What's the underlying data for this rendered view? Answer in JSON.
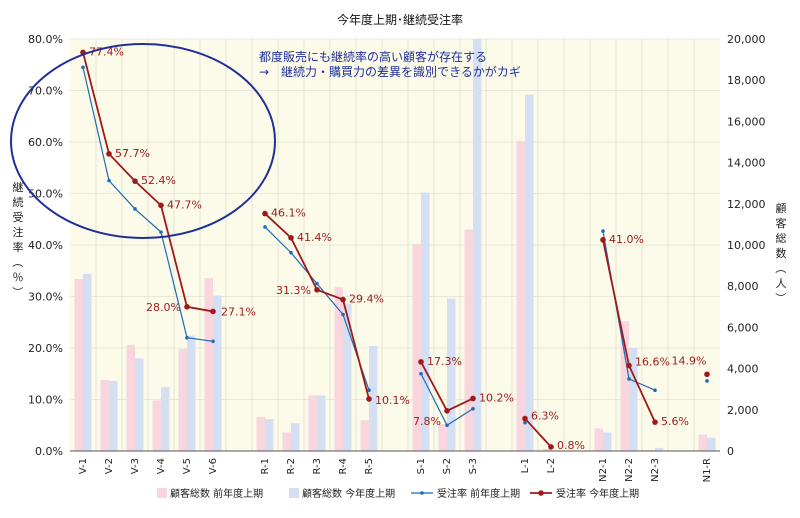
{
  "chart_data": {
    "type": "bar",
    "title": "今年度上期･継続受注率",
    "ylabel": "継続受注率（％）",
    "y2label": "顧客総数（人）",
    "ylim": [
      0,
      80
    ],
    "y2lim": [
      0,
      20000
    ],
    "y_ticks": [
      "0.0%",
      "10.0%",
      "20.0%",
      "30.0%",
      "40.0%",
      "50.0%",
      "60.0%",
      "70.0%",
      "80.0%"
    ],
    "y2_ticks": [
      "0",
      "2,000",
      "4,000",
      "6,000",
      "8,000",
      "10,000",
      "12,000",
      "14,000",
      "16,000",
      "18,000",
      "20,000"
    ],
    "grid": true,
    "legend_position": "bottom",
    "categories": [
      "V-1",
      "V-2",
      "V-3",
      "V-4",
      "V-5",
      "V-6",
      "R-1",
      "R-2",
      "R-3",
      "R-4",
      "R-5",
      "S-1",
      "S-2",
      "S-3",
      "L-1",
      "L-2",
      "N2-1",
      "N2-2",
      "N2-3",
      "N1-R"
    ],
    "groups": [
      [
        "V-1",
        "V-2",
        "V-3",
        "V-4",
        "V-5",
        "V-6"
      ],
      [
        "R-1",
        "R-2",
        "R-3",
        "R-4",
        "R-5"
      ],
      [
        "S-1",
        "S-2",
        "S-3"
      ],
      [
        "L-1",
        "L-2"
      ],
      [
        "N2-1",
        "N2-2",
        "N2-3"
      ],
      [
        "N1-R"
      ]
    ],
    "series": [
      {
        "name": "顧客総数 前年度上期",
        "kind": "bar",
        "axis": "right",
        "color": "#f9d5de",
        "values": [
          8350,
          3450,
          5150,
          2450,
          4950,
          8400,
          1650,
          900,
          2700,
          7950,
          1500,
          10050,
          1300,
          10750,
          15050,
          100,
          1100,
          6300,
          50,
          800
        ]
      },
      {
        "name": "顧客総数 今年度上期",
        "kind": "bar",
        "axis": "right",
        "color": "#d5dff3",
        "values": [
          8600,
          3400,
          4500,
          3100,
          5600,
          7550,
          1550,
          1350,
          2700,
          7150,
          5100,
          12550,
          7400,
          20000,
          17300,
          0,
          900,
          5000,
          150,
          650
        ]
      },
      {
        "name": "受注率 前年度上期",
        "kind": "line",
        "axis": "left",
        "color": "#1f6bb5",
        "values": [
          74.5,
          52.5,
          47.0,
          42.5,
          22.0,
          21.3,
          43.5,
          38.5,
          32.5,
          26.5,
          11.8,
          15.0,
          5.0,
          8.2,
          5.5,
          null,
          42.7,
          14.0,
          11.8,
          13.6
        ]
      },
      {
        "name": "受注率 今年度上期",
        "kind": "line",
        "axis": "left",
        "color": "#a01919",
        "values": [
          77.4,
          57.7,
          52.4,
          47.7,
          28.0,
          27.1,
          46.1,
          41.4,
          31.3,
          29.4,
          10.1,
          17.3,
          7.8,
          10.2,
          6.3,
          0.8,
          41.0,
          16.6,
          5.6,
          14.9
        ],
        "labels": [
          "77.4%",
          "57.7%",
          "52.4%",
          "47.7%",
          "28.0%",
          "27.1%",
          "46.1%",
          "41.4%",
          "31.3%",
          "29.4%",
          "10.1%",
          "17.3%",
          "7.8%",
          "10.2%",
          "6.3%",
          "0.8%",
          "41.0%",
          "16.6%",
          "5.6%",
          "14.9%"
        ]
      }
    ],
    "annotation": {
      "line1": "都度販売にも継続率の高い顧客が存在する",
      "line2": "→　継続力・購買力の差異を識別できるかがカギ",
      "color": "#1f2f9a"
    },
    "colors": {
      "plot_bg": "#fcfbe9",
      "grid": "#d6d6c8",
      "ellipse": "#1f2f9a"
    }
  }
}
